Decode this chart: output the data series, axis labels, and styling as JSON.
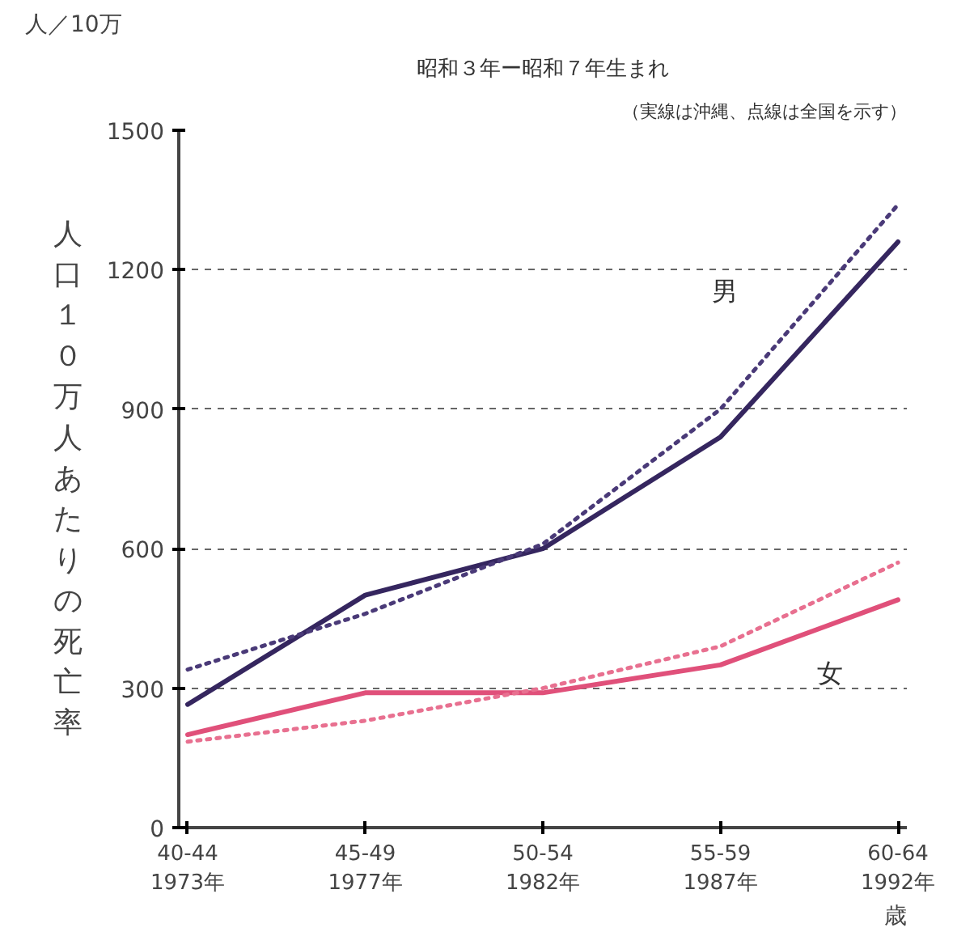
{
  "chart_data": {
    "type": "line",
    "title": "昭和３年ー昭和７年生まれ",
    "subtitle": "（実線は沖縄、点線は全国を示す）",
    "ylabel": "人口１０万人あたりの死亡率",
    "xlabel": "歳",
    "annotations": [
      "人／10万"
    ],
    "categories": [
      "40-44\n1973年",
      "45-49\n1977年",
      "50-54\n1982年",
      "55-59\n1987年",
      "60-64\n1992年"
    ],
    "series": [
      {
        "name": "男",
        "color": "#35265f",
        "values": [
          265,
          500,
          600,
          840,
          1260
        ],
        "line_style": "solid"
      },
      {
        "color": "#4a3a78",
        "values": [
          340,
          460,
          610,
          900,
          1340
        ],
        "line_style": "dotted"
      },
      {
        "name": "女",
        "color": "#e0507a",
        "values": [
          200,
          290,
          290,
          350,
          490
        ],
        "line_style": "solid"
      },
      {
        "color": "#e87090",
        "values": [
          185,
          230,
          300,
          390,
          570
        ],
        "line_style": "dotted"
      }
    ],
    "ylim": [
      0,
      1500
    ],
    "yticks": [
      0,
      300,
      600,
      900,
      1200,
      1500
    ],
    "grid": "y",
    "marker": "none"
  }
}
